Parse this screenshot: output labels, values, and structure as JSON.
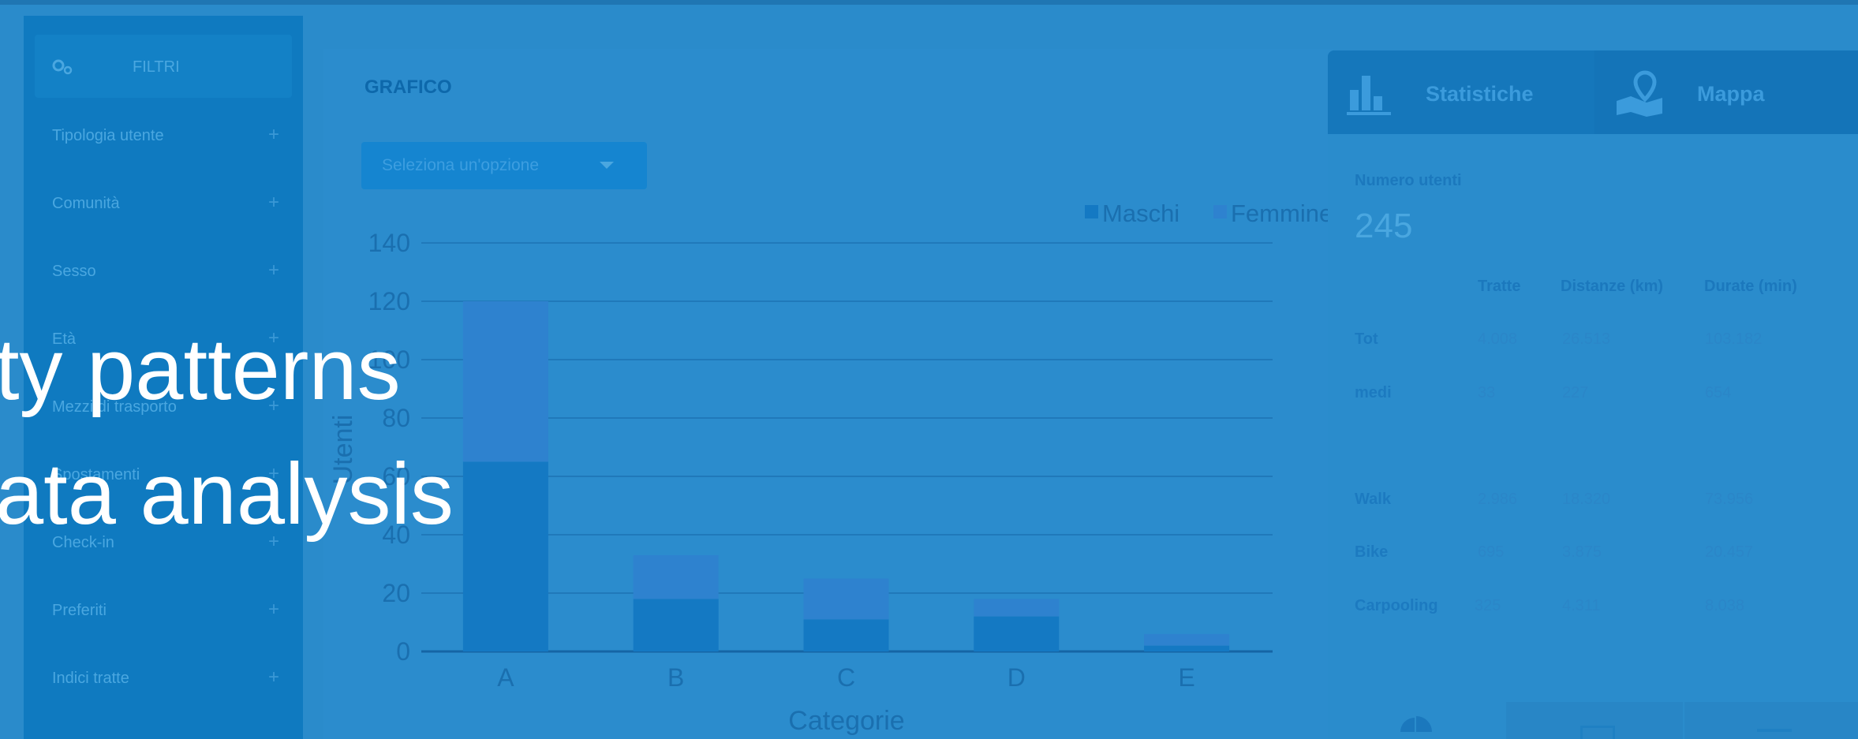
{
  "headline": {
    "line1": "ty patterns",
    "line2": "ata analysis"
  },
  "sidebar": {
    "title": "FILTRI",
    "items": [
      {
        "label": "Tipologia utente"
      },
      {
        "label": "Comunità"
      },
      {
        "label": "Sesso"
      },
      {
        "label": "Età"
      },
      {
        "label": "Mezzi di trasporto"
      },
      {
        "label": "Spostamenti"
      },
      {
        "label": "Check-in"
      },
      {
        "label": "Preferiti"
      },
      {
        "label": "Indici tratte"
      }
    ],
    "plus_symbol": "+"
  },
  "chart_panel": {
    "title": "GRAFICO",
    "select_placeholder": "Seleziona un'opzione"
  },
  "chart_data": {
    "type": "bar",
    "stacked": true,
    "categories": [
      "A",
      "B",
      "C",
      "D",
      "E"
    ],
    "series": [
      {
        "name": "Maschi",
        "values": [
          65,
          18,
          11,
          12,
          2
        ],
        "color": "#1479c3"
      },
      {
        "name": "Femmine",
        "values": [
          55,
          15,
          14,
          6,
          4
        ],
        "color": "#2e82cf"
      }
    ],
    "yticks": [
      0,
      20,
      40,
      60,
      80,
      100,
      120,
      140
    ],
    "ylim": [
      0,
      140
    ],
    "xlabel": "Categorie",
    "ylabel": "Utenti",
    "legend": "top-right",
    "grid": true
  },
  "stats": {
    "tabs": [
      {
        "label": "Statistiche",
        "icon": "bar-chart-icon"
      },
      {
        "label": "Mappa",
        "icon": "map-pin-icon"
      }
    ],
    "users_label": "Numero utenti",
    "users_value": "245",
    "columns": [
      "Tratte",
      "Distanze (km)",
      "Durate (min)"
    ],
    "rows": [
      {
        "label": "Tot",
        "values": [
          "4.008",
          "26.513",
          "103.182"
        ]
      },
      {
        "label": "medi",
        "values": [
          "33",
          "227",
          "654"
        ]
      },
      {
        "label": "Walk",
        "values": [
          "2.986",
          "18.320",
          "73.956"
        ]
      },
      {
        "label": "Bike",
        "values": [
          "695",
          "3.875",
          "20.457"
        ]
      },
      {
        "label": "Carpooling",
        "values": [
          "325",
          "4.311",
          "8.038"
        ]
      }
    ]
  },
  "colors": {
    "background": "#2a8bcb",
    "sidebar": "#0f7ac0",
    "accent": "#1479c3"
  }
}
